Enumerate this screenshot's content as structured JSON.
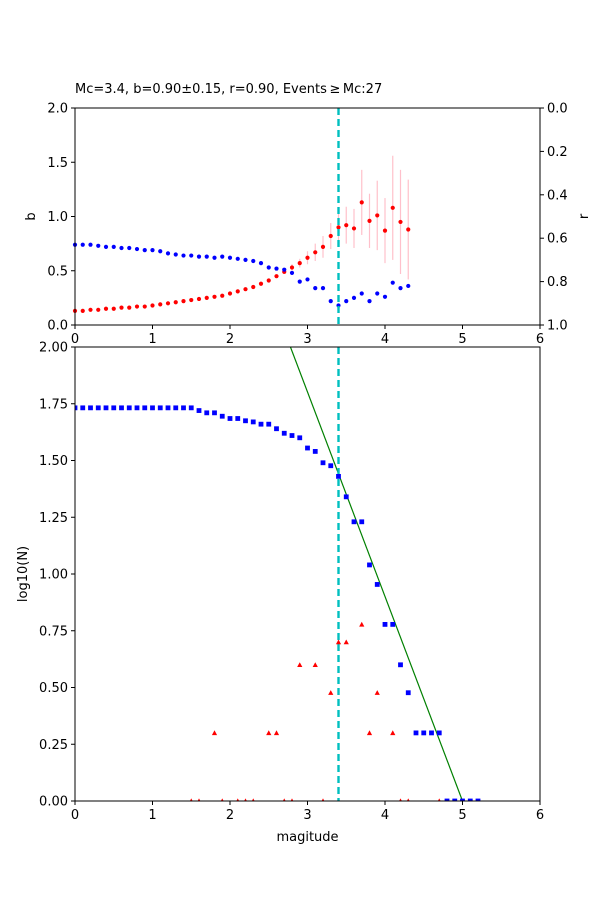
{
  "figure": {
    "title": "Mc=3.4, b=0.90±0.15, r=0.90, Events ≥ Mc:27"
  },
  "chart_data": [
    {
      "name": "b-value-vs-magnitude",
      "type": "scatter",
      "xlim": [
        0,
        6
      ],
      "ylim": [
        0,
        2
      ],
      "y2lim_inverted": [
        1.0,
        0.0
      ],
      "xticks": [
        "0",
        "1",
        "2",
        "3",
        "4",
        "5",
        "6"
      ],
      "yticks": [
        "0.0",
        "0.5",
        "1.0",
        "1.5",
        "2.0"
      ],
      "y2ticks": [
        "1.0",
        "0.8",
        "0.6",
        "0.4",
        "0.2",
        "0.0"
      ],
      "xlabel": "",
      "ylabel": "b",
      "y2label": "r",
      "mc_line": 3.4,
      "series": [
        {
          "name": "",
          "color": "#ff0000",
          "axis": "left",
          "marker": "circle",
          "x": [
            0.0,
            0.1,
            0.2,
            0.3,
            0.4,
            0.5,
            0.6,
            0.7,
            0.8,
            0.9,
            1.0,
            1.1,
            1.2,
            1.3,
            1.4,
            1.5,
            1.6,
            1.7,
            1.8,
            1.9,
            2.0,
            2.1,
            2.2,
            2.3,
            2.4,
            2.5,
            2.6,
            2.7,
            2.8,
            2.9,
            3.0,
            3.1,
            3.2,
            3.3,
            3.4,
            3.5,
            3.6,
            3.7,
            3.8,
            3.9,
            4.0,
            4.1,
            4.2,
            4.3
          ],
          "y": [
            0.13,
            0.13,
            0.14,
            0.14,
            0.15,
            0.15,
            0.16,
            0.16,
            0.17,
            0.17,
            0.18,
            0.19,
            0.2,
            0.21,
            0.22,
            0.23,
            0.24,
            0.25,
            0.26,
            0.27,
            0.29,
            0.31,
            0.33,
            0.35,
            0.38,
            0.41,
            0.45,
            0.49,
            0.53,
            0.57,
            0.62,
            0.67,
            0.72,
            0.82,
            0.9,
            0.92,
            0.89,
            1.13,
            0.96,
            1.01,
            0.87,
            1.08,
            0.95,
            0.88
          ],
          "err": [
            0,
            0,
            0,
            0,
            0,
            0,
            0,
            0,
            0,
            0,
            0,
            0,
            0,
            0,
            0,
            0,
            0,
            0,
            0,
            0,
            0,
            0,
            0,
            0,
            0,
            0,
            0,
            0.02,
            0.03,
            0.04,
            0.06,
            0.08,
            0.1,
            0.12,
            0.15,
            0.17,
            0.18,
            0.3,
            0.25,
            0.32,
            0.3,
            0.48,
            0.48,
            0.46
          ]
        },
        {
          "name": "",
          "color": "#0000ff",
          "axis": "right",
          "marker": "circle",
          "x": [
            0.0,
            0.1,
            0.2,
            0.3,
            0.4,
            0.5,
            0.6,
            0.7,
            0.8,
            0.9,
            1.0,
            1.1,
            1.2,
            1.3,
            1.4,
            1.5,
            1.6,
            1.7,
            1.8,
            1.9,
            2.0,
            2.1,
            2.2,
            2.3,
            2.4,
            2.5,
            2.6,
            2.7,
            2.8,
            2.9,
            3.0,
            3.1,
            3.2,
            3.3,
            3.4,
            3.5,
            3.6,
            3.7,
            3.8,
            3.9,
            4.0,
            4.1,
            4.2,
            4.3
          ],
          "r": [
            0.63,
            0.63,
            0.63,
            0.635,
            0.64,
            0.64,
            0.645,
            0.645,
            0.65,
            0.655,
            0.655,
            0.66,
            0.67,
            0.675,
            0.68,
            0.68,
            0.685,
            0.685,
            0.69,
            0.685,
            0.69,
            0.695,
            0.7,
            0.705,
            0.715,
            0.735,
            0.74,
            0.745,
            0.76,
            0.8,
            0.79,
            0.83,
            0.83,
            0.89,
            0.91,
            0.89,
            0.875,
            0.855,
            0.89,
            0.855,
            0.87,
            0.805,
            0.83,
            0.82
          ]
        }
      ]
    },
    {
      "name": "frequency-magnitude",
      "type": "scatter",
      "xlim": [
        0,
        6
      ],
      "ylim": [
        0,
        2
      ],
      "xticks": [
        "0",
        "1",
        "2",
        "3",
        "4",
        "5",
        "6"
      ],
      "yticks": [
        "0.00",
        "0.25",
        "0.50",
        "0.75",
        "1.00",
        "1.25",
        "1.50",
        "1.75",
        "2.00"
      ],
      "xlabel": "magitude",
      "ylabel": "log10(N)",
      "mc_line": 3.4,
      "fit_line": {
        "color": "#008000",
        "x": [
          2.78,
          5.0
        ],
        "y": [
          2.0,
          0.0
        ]
      },
      "series": [
        {
          "name": "",
          "color": "#0000ff",
          "marker": "square",
          "x": [
            0.0,
            0.1,
            0.2,
            0.3,
            0.4,
            0.5,
            0.6,
            0.7,
            0.8,
            0.9,
            1.0,
            1.1,
            1.2,
            1.3,
            1.4,
            1.5,
            1.6,
            1.7,
            1.8,
            1.9,
            2.0,
            2.1,
            2.2,
            2.3,
            2.4,
            2.5,
            2.6,
            2.7,
            2.8,
            2.9,
            3.0,
            3.1,
            3.2,
            3.3,
            3.4,
            3.5,
            3.6,
            3.7,
            3.8,
            3.9,
            4.0,
            4.1,
            4.2,
            4.3,
            4.4,
            4.5,
            4.6,
            4.7,
            4.8,
            4.9,
            5.0,
            5.1,
            5.2
          ],
          "y": [
            1.732,
            1.732,
            1.732,
            1.732,
            1.732,
            1.732,
            1.732,
            1.732,
            1.732,
            1.732,
            1.732,
            1.732,
            1.732,
            1.732,
            1.732,
            1.732,
            1.72,
            1.71,
            1.71,
            1.695,
            1.685,
            1.685,
            1.675,
            1.67,
            1.66,
            1.66,
            1.64,
            1.62,
            1.61,
            1.6,
            1.555,
            1.54,
            1.49,
            1.477,
            1.43,
            1.34,
            1.23,
            1.23,
            1.04,
            0.954,
            0.778,
            0.778,
            0.6,
            0.477,
            0.3,
            0.3,
            0.3,
            0.3,
            0.0,
            0.0,
            0.0,
            0.0,
            0.0
          ]
        },
        {
          "name": "",
          "color": "#ff0000",
          "marker": "triangle",
          "x": [
            1.5,
            1.6,
            1.8,
            1.9,
            2.1,
            2.2,
            2.3,
            2.5,
            2.6,
            2.7,
            2.8,
            2.9,
            3.1,
            3.2,
            3.3,
            3.4,
            3.5,
            3.7,
            3.8,
            3.9,
            4.1,
            4.2,
            4.3,
            4.7
          ],
          "y": [
            0.0,
            0.0,
            0.3,
            0.0,
            0.0,
            0.0,
            0.0,
            0.3,
            0.3,
            0.0,
            0.0,
            0.6,
            0.6,
            0.0,
            0.477,
            0.7,
            0.7,
            0.778,
            0.3,
            0.477,
            0.3,
            0.0,
            0.0,
            0.0
          ]
        }
      ]
    }
  ]
}
